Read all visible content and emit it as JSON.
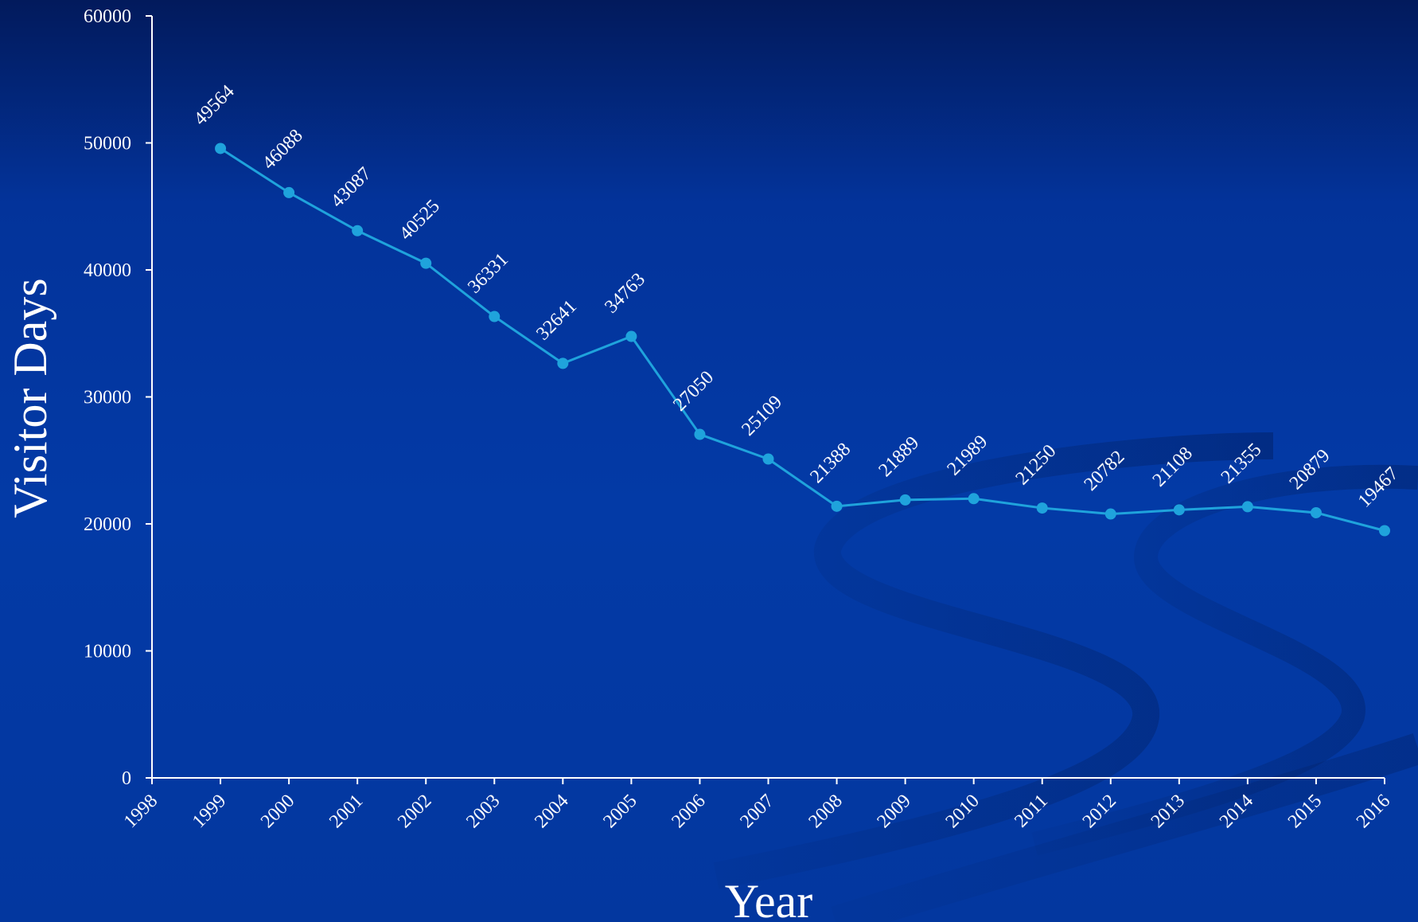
{
  "chart_data": {
    "type": "line",
    "title": "",
    "xlabel": "Year",
    "ylabel": "Visitor Days",
    "xlim": [
      1998,
      2016
    ],
    "ylim": [
      0,
      60000
    ],
    "y_ticks": [
      0,
      10000,
      20000,
      30000,
      40000,
      50000,
      60000
    ],
    "x_ticks": [
      1998,
      1999,
      2000,
      2001,
      2002,
      2003,
      2004,
      2005,
      2006,
      2007,
      2008,
      2009,
      2010,
      2011,
      2012,
      2013,
      2014,
      2015,
      2016
    ],
    "grid": false,
    "legend": "none",
    "series": [
      {
        "color": "#1fa3dc",
        "x": [
          1999,
          2000,
          2001,
          2002,
          2003,
          2004,
          2005,
          2006,
          2007,
          2008,
          2009,
          2010,
          2011,
          2012,
          2013,
          2014,
          2015,
          2016
        ],
        "values": [
          49564,
          46088,
          43087,
          40525,
          36331,
          32641,
          34763,
          27050,
          25109,
          21388,
          21889,
          21989,
          21250,
          20782,
          21108,
          21355,
          20879,
          19467
        ],
        "data_labels": [
          "49564",
          "46088",
          "43087",
          "40525",
          "36331",
          "32641",
          "34763",
          "27050",
          "25109",
          "21388",
          "21889",
          "21989",
          "21250",
          "20782",
          "21108",
          "21355",
          "20879",
          "19467"
        ]
      }
    ]
  }
}
